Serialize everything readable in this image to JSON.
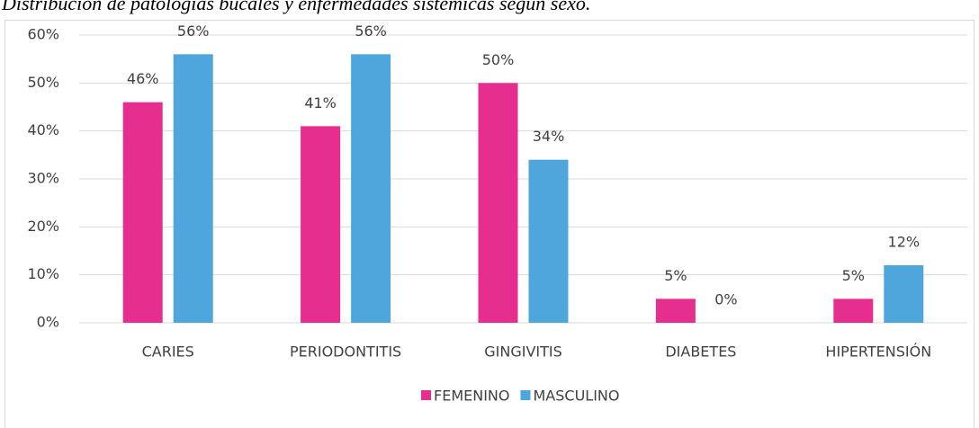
{
  "chart_data": {
    "type": "bar",
    "title": "Distribución de patologías bucales y enfermedades sistémicas según sexo.",
    "categories": [
      "CARIES",
      "PERIODONTITIS",
      "GINGIVITIS",
      "DIABETES",
      "HIPERTENSIÓN"
    ],
    "series": [
      {
        "name": "FEMENINO",
        "color": "#e62e8f",
        "values": [
          46,
          41,
          50,
          5,
          5
        ],
        "value_labels": [
          "46%",
          "41%",
          "50%",
          "5%",
          "5%"
        ]
      },
      {
        "name": "MASCULINO",
        "color": "#4ea6dc",
        "values": [
          56,
          56,
          34,
          0,
          12
        ],
        "value_labels": [
          "56%",
          "56%",
          "34%",
          "0%",
          "12%"
        ]
      }
    ],
    "ylim": [
      0,
      60
    ],
    "yticks": [
      {
        "value": 0,
        "label": "0%"
      },
      {
        "value": 10,
        "label": "10%"
      },
      {
        "value": 20,
        "label": "20%"
      },
      {
        "value": 30,
        "label": "30%"
      },
      {
        "value": 40,
        "label": "40%"
      },
      {
        "value": 50,
        "label": "50%"
      },
      {
        "value": 60,
        "label": "60%"
      }
    ],
    "grid": true,
    "legend": "bottom"
  }
}
